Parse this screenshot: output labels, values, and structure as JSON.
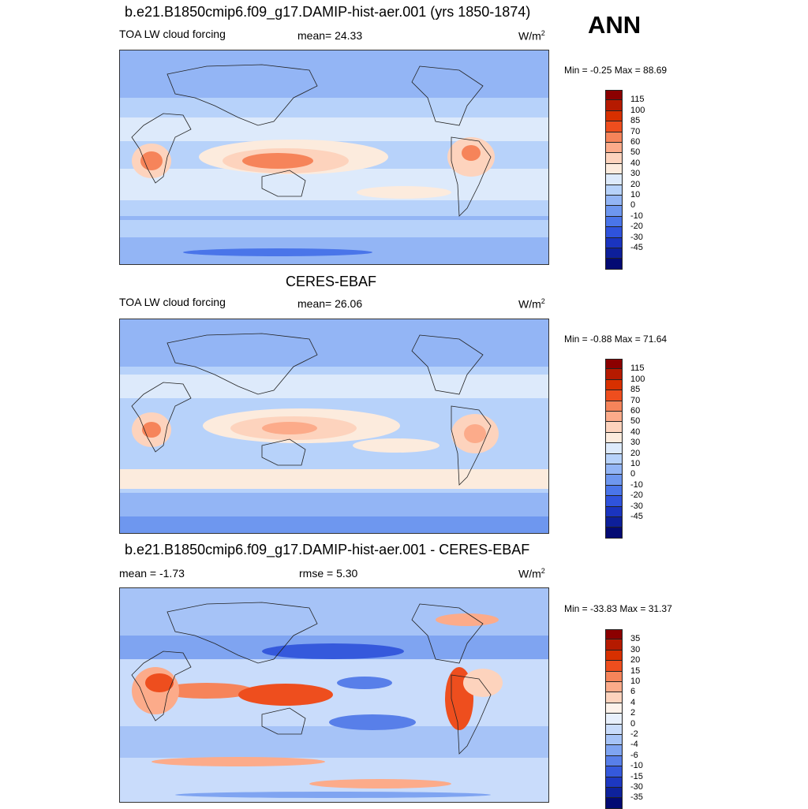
{
  "season": "ANN",
  "units_base": "W/m",
  "units_sup": "2",
  "panels": [
    {
      "title": "b.e21.B1850cmip6.f09_g17.DAMIP-hist-aer.001 (yrs 1850-1874)",
      "left_label": "TOA LW cloud forcing",
      "center_label": "mean=  24.33",
      "minmax": "Min =  -0.25 Max =  88.69",
      "colorbar": {
        "colors": [
          "#8b0000",
          "#b51a00",
          "#d73000",
          "#ee4e1e",
          "#f6845a",
          "#fcab8a",
          "#fdd3bd",
          "#fcebdd",
          "#ddeafb",
          "#b7d2fa",
          "#93b5f5",
          "#6e97ef",
          "#4a75e9",
          "#2f53dc",
          "#1a34bf",
          "#0d1f9a",
          "#030a73"
        ],
        "labels": [
          "115",
          "100",
          "85",
          "70",
          "60",
          "50",
          "40",
          "30",
          "20",
          "10",
          "0",
          "-10",
          "-20",
          "-30",
          "-45"
        ]
      }
    },
    {
      "title": "CERES-EBAF",
      "left_label": "TOA LW cloud forcing",
      "center_label": "mean=  26.06",
      "minmax": "Min =  -0.88 Max =  71.64",
      "colorbar": {
        "colors": [
          "#8b0000",
          "#b51a00",
          "#d73000",
          "#ee4e1e",
          "#f6845a",
          "#fcab8a",
          "#fdd3bd",
          "#fcebdd",
          "#ddeafb",
          "#b7d2fa",
          "#93b5f5",
          "#6e97ef",
          "#4a75e9",
          "#2f53dc",
          "#1a34bf",
          "#0d1f9a",
          "#030a73"
        ],
        "labels": [
          "115",
          "100",
          "85",
          "70",
          "60",
          "50",
          "40",
          "30",
          "20",
          "10",
          "0",
          "-10",
          "-20",
          "-30",
          "-45"
        ]
      }
    },
    {
      "title": "b.e21.B1850cmip6.f09_g17.DAMIP-hist-aer.001 - CERES-EBAF",
      "left_label": "mean =  -1.73",
      "center_label": "rmse =   5.30",
      "minmax": "Min = -33.83 Max =  31.37",
      "colorbar": {
        "colors": [
          "#8b0000",
          "#b51a00",
          "#d73000",
          "#ee4e1e",
          "#f6845a",
          "#fcab8a",
          "#fdd3bd",
          "#fdf2ea",
          "#e8f0fc",
          "#c9dcfb",
          "#a6c3f7",
          "#7fa4f1",
          "#587fe9",
          "#3559dc",
          "#1d38c1",
          "#0e229c",
          "#030a73"
        ],
        "labels": [
          "35",
          "30",
          "20",
          "15",
          "10",
          "6",
          "4",
          "2",
          "0",
          "-2",
          "-4",
          "-6",
          "-10",
          "-15",
          "-30",
          "-35"
        ]
      }
    }
  ],
  "chart_data": [
    {
      "type": "heatmap",
      "title": "b.e21.B1850cmip6.f09_g17.DAMIP-hist-aer.001 (yrs 1850-1874)",
      "variable": "TOA LW cloud forcing",
      "season": "ANN",
      "units": "W/m2",
      "mean": 24.33,
      "min": -0.25,
      "max": 88.69,
      "contour_levels": [
        -45,
        -30,
        -20,
        -10,
        0,
        10,
        20,
        30,
        40,
        50,
        60,
        70,
        85,
        100,
        115
      ],
      "projection": "global lat-lon map"
    },
    {
      "type": "heatmap",
      "title": "CERES-EBAF",
      "variable": "TOA LW cloud forcing",
      "season": "ANN",
      "units": "W/m2",
      "mean": 26.06,
      "min": -0.88,
      "max": 71.64,
      "contour_levels": [
        -45,
        -30,
        -20,
        -10,
        0,
        10,
        20,
        30,
        40,
        50,
        60,
        70,
        85,
        100,
        115
      ],
      "projection": "global lat-lon map"
    },
    {
      "type": "heatmap",
      "title": "b.e21.B1850cmip6.f09_g17.DAMIP-hist-aer.001 - CERES-EBAF",
      "season": "ANN",
      "units": "W/m2",
      "mean": -1.73,
      "rmse": 5.3,
      "min": -33.83,
      "max": 31.37,
      "contour_levels": [
        -35,
        -30,
        -15,
        -10,
        -6,
        -4,
        -2,
        0,
        2,
        4,
        6,
        10,
        15,
        20,
        30,
        35
      ],
      "projection": "global lat-lon map"
    }
  ]
}
